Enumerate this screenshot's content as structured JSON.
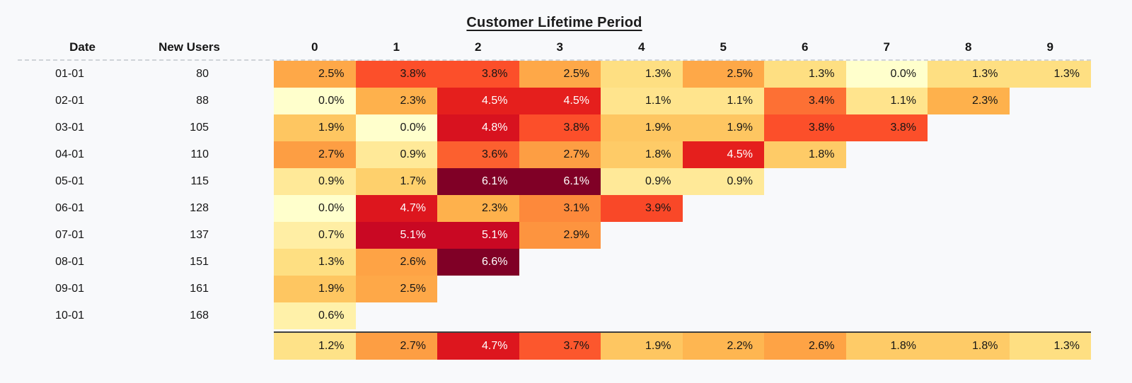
{
  "page": {
    "background": "#F8F9FB"
  },
  "chart_data": {
    "type": "heatmap",
    "title": "Customer Lifetime Period",
    "columns": {
      "date_label": "Date",
      "users_label": "New Users",
      "period_labels": [
        "0",
        "1",
        "2",
        "3",
        "4",
        "5",
        "6",
        "7",
        "8",
        "9"
      ]
    },
    "rows": [
      {
        "date": "01-01",
        "new_users": "80",
        "values": [
          2.5,
          3.8,
          3.8,
          2.5,
          1.3,
          2.5,
          1.3,
          0.0,
          1.3,
          1.3
        ]
      },
      {
        "date": "02-01",
        "new_users": "88",
        "values": [
          0.0,
          2.3,
          4.5,
          4.5,
          1.1,
          1.1,
          3.4,
          1.1,
          2.3
        ]
      },
      {
        "date": "03-01",
        "new_users": "105",
        "values": [
          1.9,
          0.0,
          4.8,
          3.8,
          1.9,
          1.9,
          3.8,
          3.8
        ]
      },
      {
        "date": "04-01",
        "new_users": "110",
        "values": [
          2.7,
          0.9,
          3.6,
          2.7,
          1.8,
          4.5,
          1.8
        ]
      },
      {
        "date": "05-01",
        "new_users": "115",
        "values": [
          0.9,
          1.7,
          6.1,
          6.1,
          0.9,
          0.9
        ]
      },
      {
        "date": "06-01",
        "new_users": "128",
        "values": [
          0.0,
          4.7,
          2.3,
          3.1,
          3.9
        ]
      },
      {
        "date": "07-01",
        "new_users": "137",
        "values": [
          0.7,
          5.1,
          5.1,
          2.9
        ]
      },
      {
        "date": "08-01",
        "new_users": "151",
        "values": [
          1.3,
          2.6,
          6.6
        ]
      },
      {
        "date": "09-01",
        "new_users": "161",
        "values": [
          1.9,
          2.5
        ]
      },
      {
        "date": "10-01",
        "new_users": "168",
        "values": [
          0.6
        ]
      }
    ],
    "summary_values": [
      1.2,
      2.7,
      4.7,
      3.7,
      1.9,
      2.2,
      2.6,
      1.8,
      1.8,
      1.3
    ],
    "value_format": {
      "decimals": 1,
      "suffix": "%"
    },
    "colormap": {
      "name": "YlOrRd",
      "stops": [
        "#FFFFCC",
        "#FFEDA0",
        "#FED976",
        "#FEB24C",
        "#FD8D3C",
        "#FC4E2A",
        "#E31A1C",
        "#BD0026",
        "#800026"
      ],
      "vmin": 0,
      "vmax": 6.1,
      "dark_text": "#151515",
      "light_text": "#FFFFFF"
    },
    "divider_colors": {
      "header_dashed": "#cfd3d8",
      "summary_solid": "#3f3f3f"
    }
  }
}
